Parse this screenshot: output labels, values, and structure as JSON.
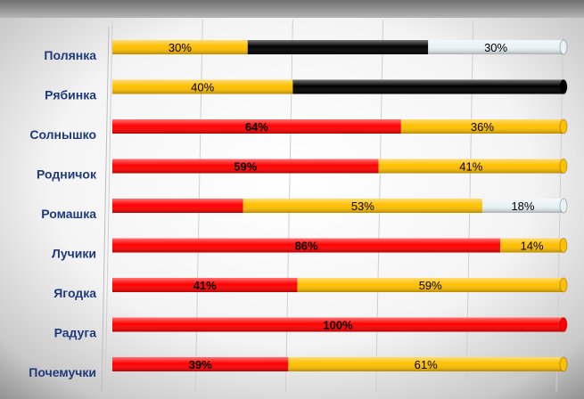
{
  "colors": {
    "red": "#ff0000",
    "yellow": "#ffc000",
    "black": "#000000",
    "white": "#e9f2f6",
    "label_blue": "#1f3a7a"
  },
  "chart_data": {
    "type": "bar",
    "orientation": "horizontal",
    "stacked": true,
    "percent": true,
    "xlim": [
      0,
      100
    ],
    "grid": true,
    "legend": "none",
    "categories": [
      "Полянка",
      "Рябинка",
      "Солнышко",
      "Родничок",
      "Ромашка",
      "Лучики",
      "Ягодка",
      "Радуга",
      "Почемучки"
    ],
    "series": [
      {
        "color": "red",
        "values": [
          0,
          0,
          64,
          59,
          29,
          86,
          41,
          100,
          39
        ],
        "labels": [
          "",
          "",
          "64%",
          "59%",
          "",
          "86%",
          "41%",
          "100%",
          "39%"
        ]
      },
      {
        "color": "yellow",
        "values": [
          30,
          40,
          36,
          41,
          53,
          14,
          59,
          0,
          61
        ],
        "labels": [
          "30%",
          "40%",
          "36%",
          "41%",
          "53%",
          "14%",
          "59%",
          "",
          "61%"
        ]
      },
      {
        "color": "black",
        "values": [
          40,
          60,
          0,
          0,
          0,
          0,
          0,
          0,
          0
        ],
        "labels": [
          "",
          "",
          "",
          "",
          "",
          "",
          "",
          "",
          ""
        ]
      },
      {
        "color": "white",
        "values": [
          30,
          0,
          0,
          0,
          18,
          0,
          0,
          0,
          0
        ],
        "labels": [
          "30%",
          "",
          "",
          "",
          "18%",
          "",
          "",
          "",
          ""
        ]
      }
    ]
  }
}
